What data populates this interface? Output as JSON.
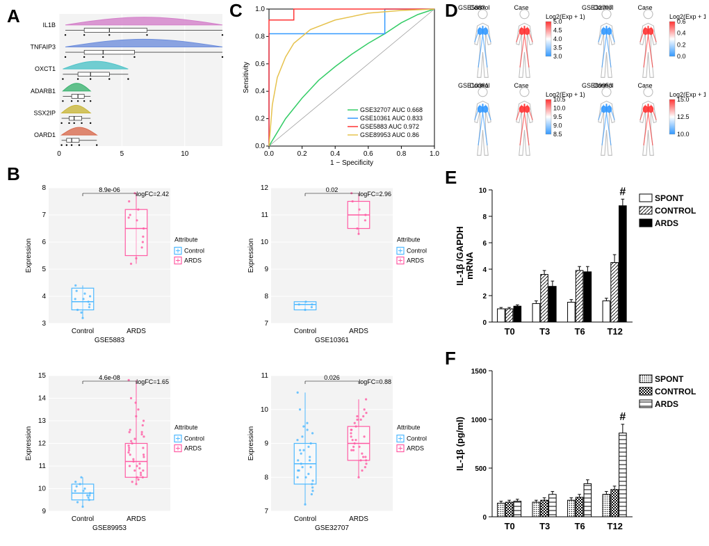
{
  "panelA": {
    "label": "A",
    "genes": [
      "IL1B",
      "TNFAIP3",
      "OXCT1",
      "ADARB1",
      "SSX2IP",
      "OARD1"
    ],
    "colors": [
      "#d37fc9",
      "#6f8fdc",
      "#4fc3c8",
      "#3cb371",
      "#c9b63b",
      "#d86b4f"
    ],
    "violin": [
      {
        "min": 0.5,
        "q1": 2,
        "med": 4,
        "q3": 7,
        "max": 13
      },
      {
        "min": 0.5,
        "q1": 2,
        "med": 3.5,
        "q3": 6,
        "max": 13
      },
      {
        "min": 0.3,
        "q1": 1.5,
        "med": 2.5,
        "q3": 4,
        "max": 5.5
      },
      {
        "min": 0.3,
        "q1": 1,
        "med": 1.5,
        "q3": 2,
        "max": 2.5
      },
      {
        "min": 0.2,
        "q1": 0.8,
        "med": 1.2,
        "q3": 1.8,
        "max": 2.5
      },
      {
        "min": 0.2,
        "q1": 0.6,
        "med": 1,
        "q3": 1.6,
        "max": 3
      }
    ],
    "xlim": [
      0,
      13
    ],
    "xtick_step": 5
  },
  "panelB": {
    "label": "B",
    "plots": [
      {
        "dataset": "GSE5883",
        "pvalue": "8.9e-06",
        "logFC": "logFC=2.42",
        "ylim": [
          3,
          8
        ],
        "control": {
          "q1": 3.5,
          "med": 3.8,
          "q3": 4.3,
          "pts": [
            3.2,
            3.6,
            3.7,
            3.9,
            4.2,
            4.4,
            3.4,
            3.8,
            4.0,
            4.1,
            3.5,
            3.9
          ]
        },
        "ards": {
          "q1": 5.5,
          "med": 6.5,
          "q3": 7.2,
          "pts": [
            5.4,
            6.0,
            6.2,
            6.8,
            7.0,
            7.5,
            7.8,
            5.8,
            6.5,
            7.2,
            5.2,
            6.9
          ]
        }
      },
      {
        "dataset": "GSE10361",
        "pvalue": "0.02",
        "logFC": "logFC=2.96",
        "ylim": [
          7,
          12
        ],
        "control": {
          "q1": 7.5,
          "med": 7.7,
          "q3": 7.8,
          "pts": [
            7.5,
            7.6,
            7.7,
            7.8,
            7.7
          ]
        },
        "ards": {
          "q1": 10.5,
          "med": 11.0,
          "q3": 11.5,
          "pts": [
            10.3,
            10.8,
            11.0,
            11.2,
            11.5,
            11.8,
            10.5
          ]
        }
      },
      {
        "dataset": "GSE89953",
        "pvalue": "4.6e-08",
        "logFC": "logFC=1.65",
        "ylim": [
          9,
          15
        ],
        "control": {
          "q1": 9.5,
          "med": 9.8,
          "q3": 10.2,
          "pts": [
            9.2,
            9.5,
            9.7,
            9.9,
            10.1,
            10.3,
            10.5,
            9.6,
            9.8,
            10.0,
            9.4,
            9.9,
            10.2,
            9.7
          ]
        },
        "ards": {
          "q1": 10.5,
          "med": 11.2,
          "q3": 12.0,
          "pts": [
            10.2,
            10.5,
            10.8,
            11.0,
            11.5,
            11.8,
            12.2,
            12.5,
            13.0,
            13.5,
            14.0,
            14.8,
            11.2,
            10.6,
            11.4,
            10.9,
            12.0,
            11.6,
            10.3,
            11.1,
            12.3,
            10.7,
            11.3,
            11.9,
            12.1,
            10.4,
            11.5,
            12.4,
            10.8,
            11.7,
            12.6,
            10.5,
            11.8,
            12.8,
            13.2,
            11.0,
            12.5,
            13.8
          ]
        }
      },
      {
        "dataset": "GSE32707",
        "pvalue": "0.026",
        "logFC": "logFC=0.88",
        "ylim": [
          7,
          11
        ],
        "control": {
          "q1": 7.8,
          "med": 8.4,
          "q3": 9.0,
          "pts": [
            7.2,
            7.5,
            7.8,
            8.0,
            8.2,
            8.5,
            8.8,
            9.0,
            9.3,
            9.6,
            10.0,
            10.5,
            8.3,
            8.6,
            7.9,
            8.1,
            8.7,
            9.1,
            8.4,
            8.9,
            7.6,
            8.5,
            9.2,
            8.0,
            8.8,
            9.4,
            7.7,
            8.3,
            9.5,
            8.2
          ]
        },
        "ards": {
          "q1": 8.5,
          "med": 9.0,
          "q3": 9.5,
          "pts": [
            8.0,
            8.3,
            8.6,
            8.9,
            9.1,
            9.4,
            9.7,
            10.0,
            10.3,
            8.5,
            8.8,
            9.2,
            9.5,
            9.8,
            8.4,
            8.7,
            9.0,
            9.3,
            9.6,
            8.2,
            9.9,
            8.6,
            9.1,
            9.4,
            8.9,
            9.7,
            8.5,
            9.2,
            9.8,
            8.8
          ]
        }
      }
    ],
    "colors": {
      "control": "#4db8ff",
      "ards": "#ff5aa3"
    },
    "legend_title": "Attribute",
    "legend_items": [
      "Control",
      "ARDS"
    ]
  },
  "panelC": {
    "label": "C",
    "xlabel": "1 − Specificity",
    "ylabel": "Sensitivity",
    "ticks": [
      0.0,
      0.2,
      0.4,
      0.6,
      0.8,
      1.0
    ],
    "curves": [
      {
        "label": "GSE32707 AUC 0.668",
        "color": "#33cc66",
        "pts": [
          [
            0,
            0
          ],
          [
            0.05,
            0.1
          ],
          [
            0.1,
            0.2
          ],
          [
            0.2,
            0.35
          ],
          [
            0.3,
            0.48
          ],
          [
            0.4,
            0.58
          ],
          [
            0.5,
            0.67
          ],
          [
            0.6,
            0.75
          ],
          [
            0.7,
            0.82
          ],
          [
            0.8,
            0.9
          ],
          [
            0.9,
            0.96
          ],
          [
            1,
            1
          ]
        ]
      },
      {
        "label": "GSE10361 AUC 0.833",
        "color": "#3399ff",
        "pts": [
          [
            0,
            0
          ],
          [
            0,
            0.82
          ],
          [
            0.7,
            0.82
          ],
          [
            0.7,
            1.0
          ],
          [
            1,
            1
          ]
        ]
      },
      {
        "label": "GSE5883 AUC 0.972",
        "color": "#ff3333",
        "pts": [
          [
            0,
            0
          ],
          [
            0,
            0.92
          ],
          [
            0.15,
            0.92
          ],
          [
            0.15,
            1.0
          ],
          [
            1,
            1
          ]
        ]
      },
      {
        "label": "GSE89953 AUC 0.86",
        "color": "#e6c24d",
        "pts": [
          [
            0,
            0
          ],
          [
            0.02,
            0.3
          ],
          [
            0.05,
            0.5
          ],
          [
            0.1,
            0.65
          ],
          [
            0.15,
            0.75
          ],
          [
            0.25,
            0.85
          ],
          [
            0.4,
            0.92
          ],
          [
            0.6,
            0.97
          ],
          [
            0.8,
            0.99
          ],
          [
            1,
            1
          ]
        ]
      }
    ]
  },
  "panelD": {
    "label": "D",
    "datasets": [
      "GSE5883",
      "GSE32707",
      "GSE10361",
      "GSE89953"
    ],
    "cond_labels": [
      "Control",
      "Case"
    ],
    "scale_label": "Log2(Exp + 1)",
    "colors": {
      "control": "#3399ff",
      "case": "#ff3333"
    },
    "gradient": [
      "#3399ff",
      "#ffffff",
      "#ff3333"
    ],
    "scales": [
      [
        "5.0",
        "4.5",
        "4.0",
        "3.5",
        "3.0"
      ],
      [
        "0.6",
        "0.4",
        "0.2",
        "0.0"
      ],
      [
        "10.5",
        "10.0",
        "9.5",
        "9.0",
        "8.5"
      ],
      [
        "15.0",
        "12.5",
        "10.0"
      ]
    ]
  },
  "panelE": {
    "label": "E",
    "ylabel": "IL-1β /GAPDH\nmRNA",
    "ylim": [
      0,
      10
    ],
    "ytick_step": 2,
    "timepoints": [
      "T0",
      "T3",
      "T6",
      "T12"
    ],
    "groups": [
      "SPONT",
      "CONTROL",
      "ARDS"
    ],
    "data": {
      "SPONT": [
        1.0,
        1.4,
        1.5,
        1.6
      ],
      "CONTROL": [
        1.0,
        3.6,
        3.9,
        4.5
      ],
      "ARDS": [
        1.2,
        2.7,
        3.8,
        8.8
      ]
    },
    "err": {
      "SPONT": [
        0.1,
        0.2,
        0.2,
        0.2
      ],
      "CONTROL": [
        0.1,
        0.3,
        0.3,
        0.6
      ],
      "ARDS": [
        0.1,
        0.4,
        0.4,
        0.5
      ]
    },
    "sig_mark": "#"
  },
  "panelF": {
    "label": "F",
    "ylabel": "IL-1β (pg/ml)",
    "ylim": [
      0,
      1500
    ],
    "ytick_step": 500,
    "timepoints": [
      "T0",
      "T3",
      "T6",
      "T12"
    ],
    "groups": [
      "SPONT",
      "CONTROL",
      "ARDS"
    ],
    "data": {
      "SPONT": [
        140,
        150,
        170,
        230
      ],
      "CONTROL": [
        150,
        170,
        200,
        280
      ],
      "ARDS": [
        160,
        230,
        340,
        860
      ]
    },
    "err": {
      "SPONT": [
        20,
        20,
        25,
        30
      ],
      "CONTROL": [
        20,
        25,
        30,
        35
      ],
      "ARDS": [
        20,
        30,
        40,
        90
      ]
    },
    "sig_mark": "#"
  }
}
